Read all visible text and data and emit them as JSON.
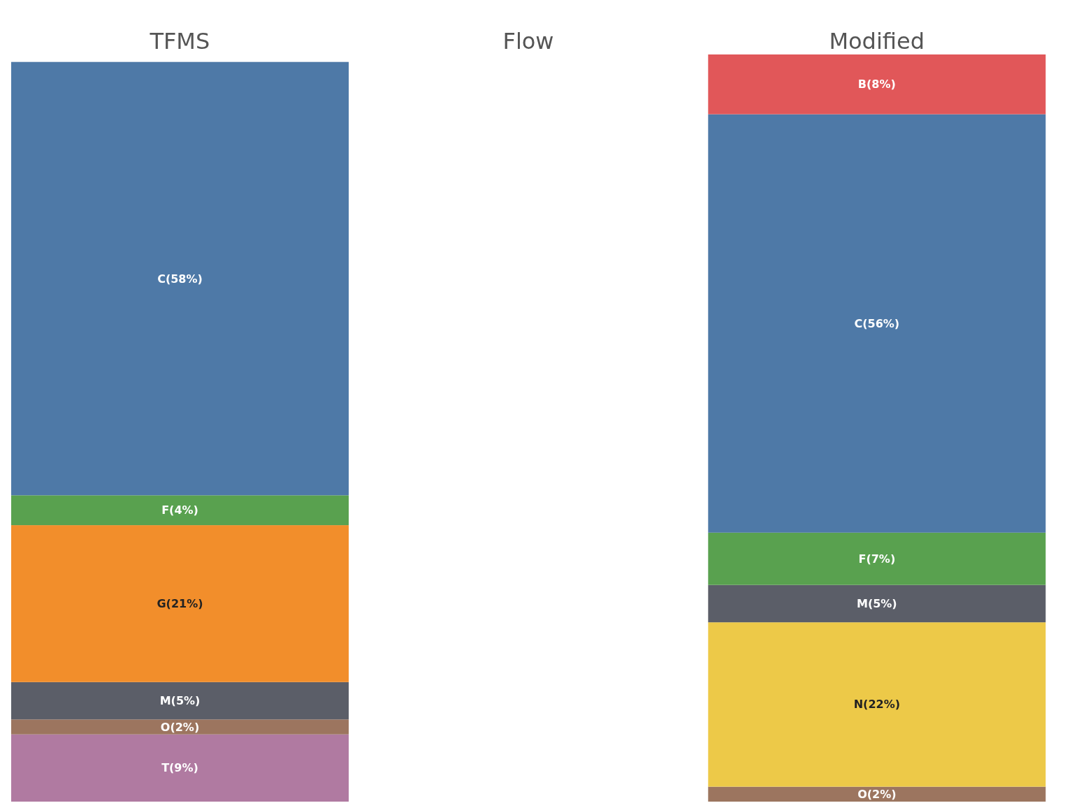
{
  "chart_data": {
    "type": "other",
    "categories": [
      "TFMS",
      "Flow",
      "Modified"
    ],
    "series": [
      {
        "color": "#b07aa1",
        "values": [
          9,
          null,
          null
        ],
        "value_labels": [
          "T(9%)",
          null,
          null
        ]
      },
      {
        "color": "#9c755f",
        "values": [
          2,
          null,
          2
        ],
        "value_labels": [
          "O(2%)",
          null,
          "O(2%)"
        ]
      },
      {
        "color": "#edc948",
        "values": [
          null,
          null,
          22
        ],
        "value_labels": [
          null,
          null,
          "N(22%)"
        ]
      },
      {
        "color": "#5b5e68",
        "values": [
          5,
          null,
          5
        ],
        "value_labels": [
          "M(5%)",
          null,
          "M(5%)"
        ]
      },
      {
        "color": "#f28e2b",
        "values": [
          21,
          null,
          null
        ],
        "value_labels": [
          "G(21%)",
          null,
          null
        ]
      },
      {
        "color": "#59a14f",
        "values": [
          4,
          null,
          7
        ],
        "value_labels": [
          "F(4%)",
          null,
          "F(7%)"
        ]
      },
      {
        "color": "#4e79a7",
        "values": [
          58,
          null,
          56
        ],
        "value_labels": [
          "C(58%)",
          null,
          "C(56%)"
        ]
      },
      {
        "color": "#e15759",
        "values": [
          null,
          null,
          8
        ],
        "value_labels": [
          null,
          null,
          "B(8%)"
        ]
      }
    ]
  }
}
